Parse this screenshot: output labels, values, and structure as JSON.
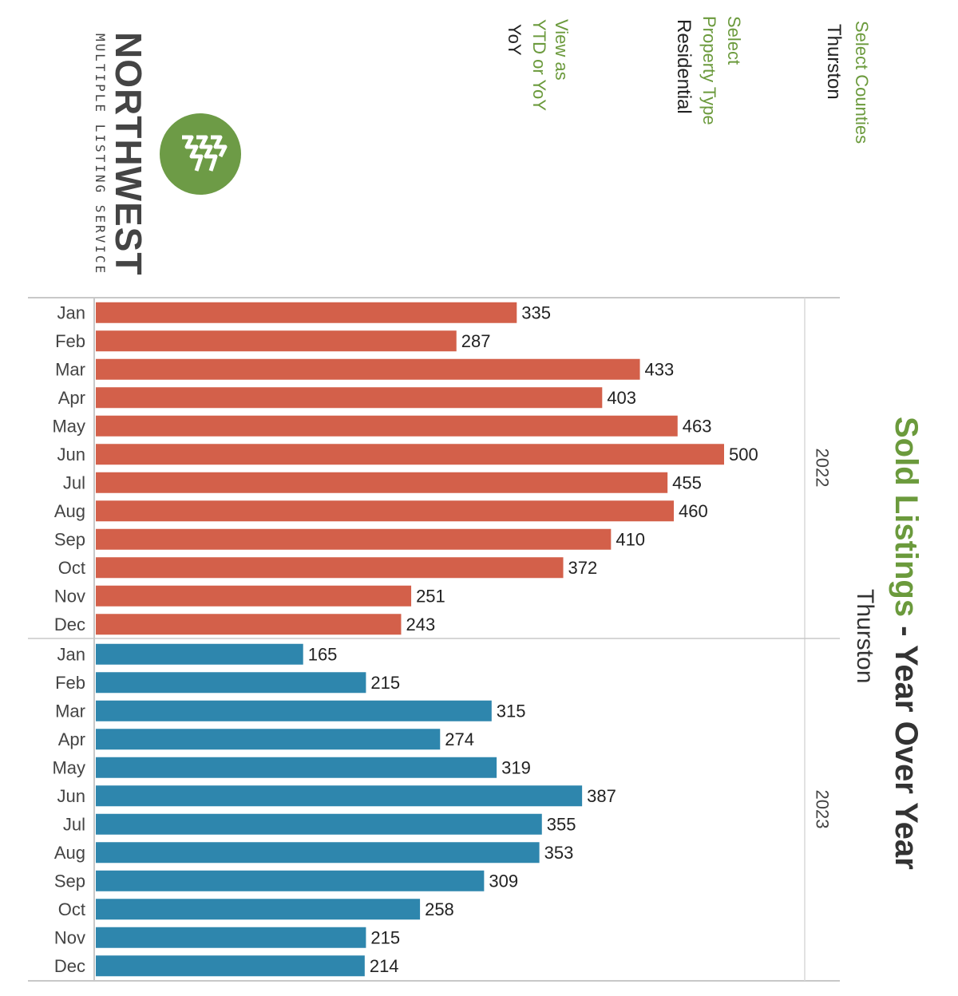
{
  "filters": {
    "counties_label": "Select Counties",
    "counties_value": "Thurston",
    "property_label_line1": "Select",
    "property_label_line2": "Property Type",
    "property_value": "Residential",
    "view_label_line1": "View as",
    "view_label_line2": "YTD or YoY",
    "view_value": "YoY"
  },
  "logo": {
    "name": "NORTHWEST",
    "subtitle": "MULTIPLE LISTING SERVICE",
    "icon": "mountain-trees-icon",
    "color": "#6d9b46"
  },
  "title": {
    "highlight": "Sold Listings",
    "rest": " - Year Over Year",
    "subtitle": "Thurston"
  },
  "colors": {
    "accent_green": "#6b9a3c",
    "series_2022": "#d3604a",
    "series_2023": "#2e86ad"
  },
  "chart_data": {
    "type": "bar",
    "orientation": "horizontal",
    "categories": [
      "Jan",
      "Feb",
      "Mar",
      "Apr",
      "May",
      "Jun",
      "Jul",
      "Aug",
      "Sep",
      "Oct",
      "Nov",
      "Dec"
    ],
    "series": [
      {
        "name": "2022",
        "values": [
          335,
          287,
          433,
          403,
          463,
          500,
          455,
          460,
          410,
          372,
          251,
          243
        ]
      },
      {
        "name": "2023",
        "values": [
          165,
          215,
          315,
          274,
          319,
          387,
          355,
          353,
          309,
          258,
          215,
          214
        ]
      }
    ],
    "xlim": [
      0,
      500
    ],
    "grid": false,
    "data_labels": true
  }
}
